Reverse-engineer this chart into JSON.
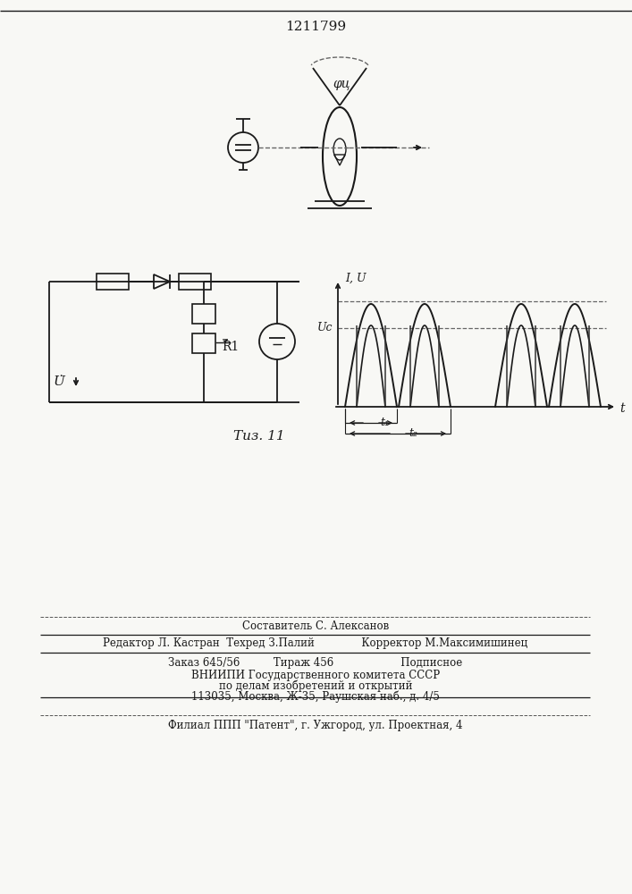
{
  "patent_number": "1211799",
  "fig_label": "Τиз. 11",
  "phi_label": "φц",
  "lu_label": "I, U",
  "t_label": "t",
  "us_label": "Uс",
  "t1_label": "t₁",
  "t2_label": "t₂",
  "u_label": "U̇",
  "r1_label": "R1",
  "bg_color": "#f8f8f5",
  "line_color": "#1a1a1a",
  "footer_lines": [
    "Составитель С. Алексанов",
    "Редактор Л. Кастран  Техред З.Палий              Корректор М.Максимишинец",
    "Заказ 645/56          Тираж 456                    Подписное",
    "ВНИИПИ Государственного комитета СССР",
    "по делам изобретений и открытий",
    "113035, Москва, Ж-35, Раушская наб., д. 4/5",
    "Филиал ППП \"Патент\", г. Ужгород, ул. Проектная, 4"
  ]
}
